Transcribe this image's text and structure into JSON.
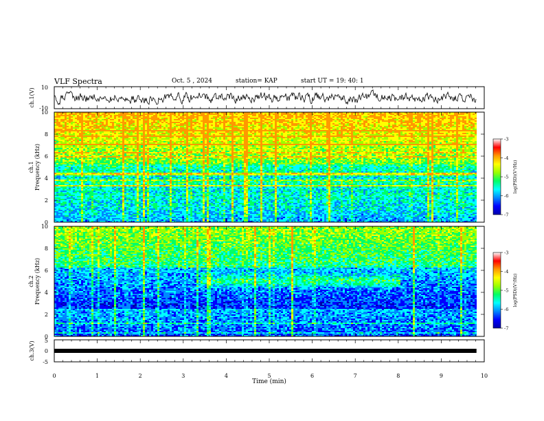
{
  "header": {
    "title": "VLF Spectra",
    "date": "Oct. 5 , 2024",
    "station": "station= KAP",
    "start_ut": "start UT =   19: 40: 1"
  },
  "chart_data": [
    {
      "type": "line",
      "name": "ch1-waveform",
      "ylabel": "ch.1(V)",
      "ylim": [
        -10,
        10
      ],
      "yticks": [
        "10",
        "-10"
      ],
      "xlim": [
        0,
        10
      ]
    },
    {
      "type": "heatmap",
      "name": "ch1-spectrogram",
      "ylabel": "ch.1\nFrequency (kHz)",
      "ylabel_lines": [
        "ch.1",
        "Frequency (kHz)"
      ],
      "ylim": [
        0,
        10
      ],
      "yticks": [
        "0",
        "2",
        "4",
        "6",
        "8",
        "10"
      ],
      "xlim": [
        0,
        10
      ],
      "data_extent_x": [
        0,
        9.82
      ],
      "colorbar": {
        "label": "log(PSD)(V²/Hz)",
        "range": [
          -7,
          -3
        ],
        "ticks": [
          "-3",
          "-4",
          "-5",
          "-6",
          "-7"
        ],
        "colors": [
          "#0000aa",
          "#0000ff",
          "#0088ff",
          "#00ffff",
          "#00ff66",
          "#99ff00",
          "#ffff00",
          "#ff9900",
          "#ff0000",
          "#ffffff"
        ]
      }
    },
    {
      "type": "heatmap",
      "name": "ch2-spectrogram",
      "ylabel": "ch.2\nFrequency (kHz)",
      "ylabel_lines": [
        "ch.2",
        "Frequency (kHz)"
      ],
      "ylim": [
        0,
        10
      ],
      "yticks": [
        "0",
        "2",
        "4",
        "6",
        "8",
        "10"
      ],
      "xlim": [
        0,
        10
      ],
      "data_extent_x": [
        0,
        9.82
      ],
      "colorbar": {
        "label": "log(PSD)(V²/Hz)",
        "range": [
          -7,
          -3
        ],
        "ticks": [
          "-3",
          "-4",
          "-5",
          "-6",
          "-7"
        ],
        "colors": [
          "#0000aa",
          "#0000ff",
          "#0088ff",
          "#00ffff",
          "#00ff66",
          "#99ff00",
          "#ffff00",
          "#ff9900",
          "#ff0000",
          "#ffffff"
        ]
      },
      "emission_band": {
        "t_start": 3.4,
        "t_end": 8.05,
        "f_low": 4.2,
        "f_high": 5.8
      }
    },
    {
      "type": "line",
      "name": "ch3-waveform",
      "ylabel": "ch.3(V)",
      "ylim": [
        -5,
        5
      ],
      "yticks": [
        "5",
        "0",
        "-5"
      ],
      "xlim": [
        0,
        10
      ],
      "flat_value": 0
    }
  ],
  "xaxis": {
    "label": "Time (min)",
    "ticks": [
      "0",
      "1",
      "2",
      "3",
      "4",
      "5",
      "6",
      "7",
      "8",
      "9",
      "10"
    ]
  }
}
